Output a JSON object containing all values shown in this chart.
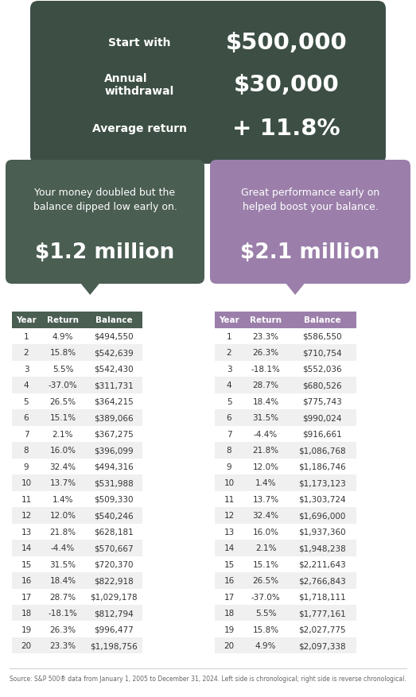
{
  "bg_color": "#ffffff",
  "top_box_color": "#3d4f45",
  "left_box_color": "#4a5e52",
  "right_box_color": "#9b7faa",
  "header_left_color": "#4a5e52",
  "header_right_color": "#9b7faa",
  "top_labels": [
    "Start with",
    "Annual\nwithdrawal",
    "Average return"
  ],
  "top_values": [
    "$500,000",
    "$30,000",
    "+ 11.8%"
  ],
  "left_subtitle": "Your money doubled but the\nbalance dipped low early on.",
  "left_amount": "$1.2 million",
  "right_subtitle": "Great performance early on\nhelped boost your balance.",
  "right_amount": "$2.1 million",
  "col_headers": [
    "Year",
    "Return",
    "Balance"
  ],
  "left_table": [
    [
      1,
      "4.9%",
      "$494,550"
    ],
    [
      2,
      "15.8%",
      "$542,639"
    ],
    [
      3,
      "5.5%",
      "$542,430"
    ],
    [
      4,
      "-37.0%",
      "$311,731"
    ],
    [
      5,
      "26.5%",
      "$364,215"
    ],
    [
      6,
      "15.1%",
      "$389,066"
    ],
    [
      7,
      "2.1%",
      "$367,275"
    ],
    [
      8,
      "16.0%",
      "$396,099"
    ],
    [
      9,
      "32.4%",
      "$494,316"
    ],
    [
      10,
      "13.7%",
      "$531,988"
    ],
    [
      11,
      "1.4%",
      "$509,330"
    ],
    [
      12,
      "12.0%",
      "$540,246"
    ],
    [
      13,
      "21.8%",
      "$628,181"
    ],
    [
      14,
      "-4.4%",
      "$570,667"
    ],
    [
      15,
      "31.5%",
      "$720,370"
    ],
    [
      16,
      "18.4%",
      "$822,918"
    ],
    [
      17,
      "28.7%",
      "$1,029,178"
    ],
    [
      18,
      "-18.1%",
      "$812,794"
    ],
    [
      19,
      "26.3%",
      "$996,477"
    ],
    [
      20,
      "23.3%",
      "$1,198,756"
    ]
  ],
  "right_table": [
    [
      1,
      "23.3%",
      "$586,550"
    ],
    [
      2,
      "26.3%",
      "$710,754"
    ],
    [
      3,
      "-18.1%",
      "$552,036"
    ],
    [
      4,
      "28.7%",
      "$680,526"
    ],
    [
      5,
      "18.4%",
      "$775,743"
    ],
    [
      6,
      "31.5%",
      "$990,024"
    ],
    [
      7,
      "-4.4%",
      "$916,661"
    ],
    [
      8,
      "21.8%",
      "$1,086,768"
    ],
    [
      9,
      "12.0%",
      "$1,186,746"
    ],
    [
      10,
      "1.4%",
      "$1,173,123"
    ],
    [
      11,
      "13.7%",
      "$1,303,724"
    ],
    [
      12,
      "32.4%",
      "$1,696,000"
    ],
    [
      13,
      "16.0%",
      "$1,937,360"
    ],
    [
      14,
      "2.1%",
      "$1,948,238"
    ],
    [
      15,
      "15.1%",
      "$2,211,643"
    ],
    [
      16,
      "26.5%",
      "$2,766,843"
    ],
    [
      17,
      "-37.0%",
      "$1,718,111"
    ],
    [
      18,
      "5.5%",
      "$1,777,161"
    ],
    [
      19,
      "15.8%",
      "$2,027,775"
    ],
    [
      20,
      "4.9%",
      "$2,097,338"
    ]
  ],
  "footnote": "Source: S&P 500® data from January 1, 2005 to December 31, 2024. Left side is chronological; right side is reverse chronological."
}
